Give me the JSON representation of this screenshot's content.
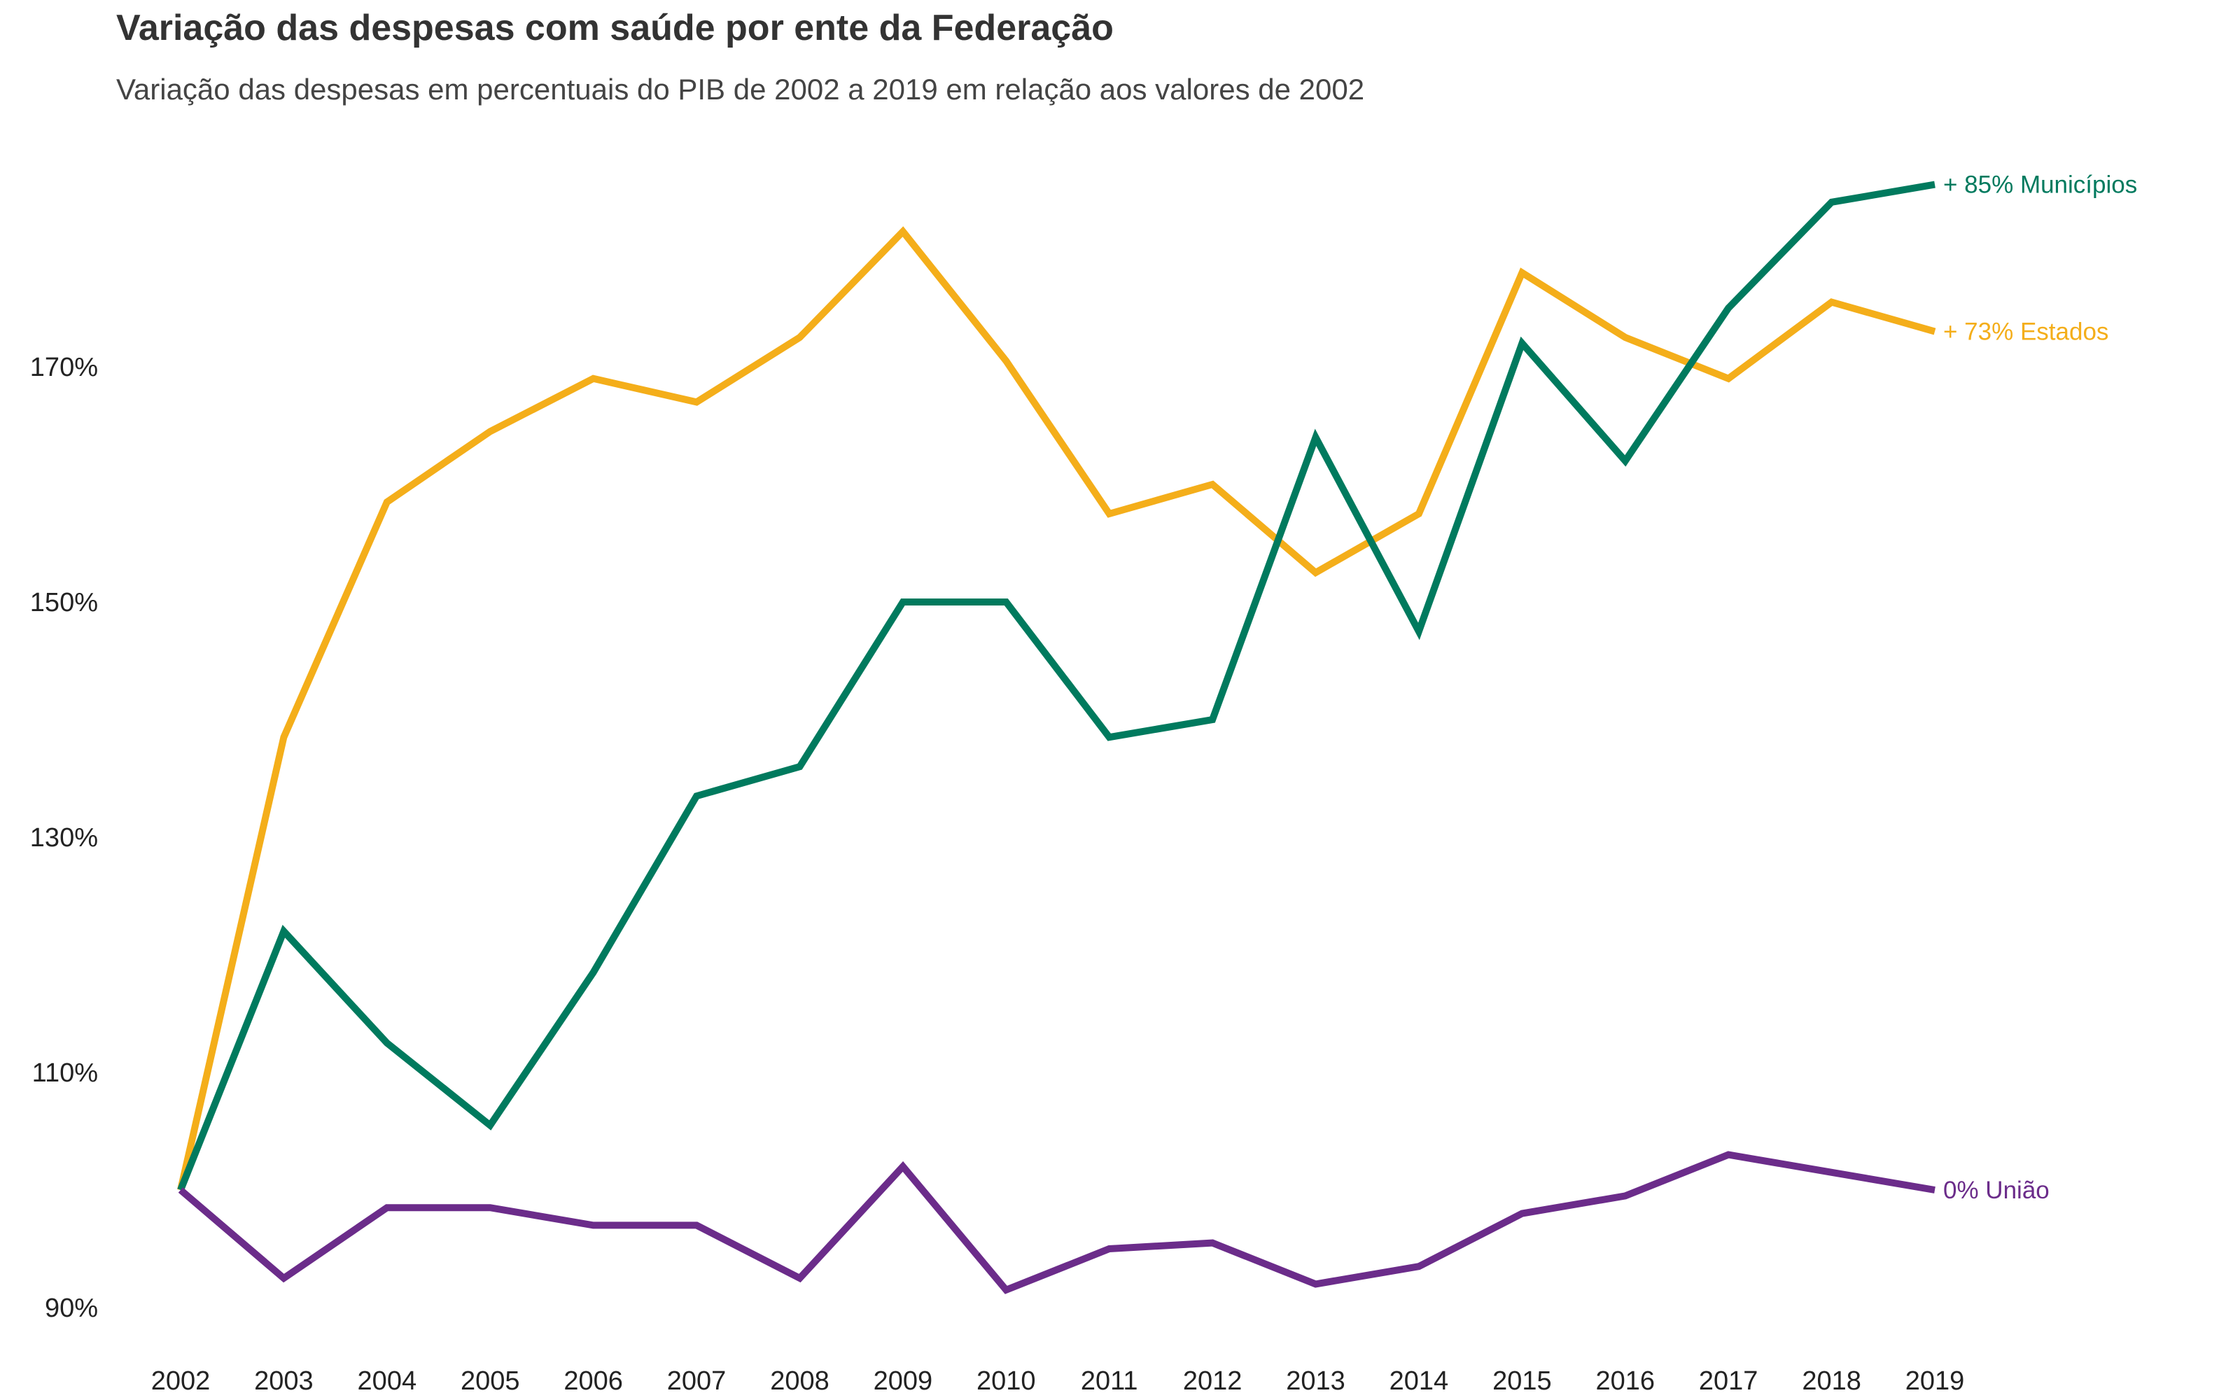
{
  "chart_data": {
    "type": "line",
    "title": "Variação das despesas com saúde por ente da Federação",
    "subtitle": "Variação das despesas em percentuais do PIB de 2002 a 2019 em relação aos valores de 2002",
    "x": [
      "2002",
      "2003",
      "2004",
      "2005",
      "2006",
      "2007",
      "2008",
      "2009",
      "2010",
      "2011",
      "2012",
      "2013",
      "2014",
      "2015",
      "2016",
      "2017",
      "2018",
      "2019"
    ],
    "yticks": [
      {
        "value": 90,
        "label": "90%"
      },
      {
        "value": 110,
        "label": "110%"
      },
      {
        "value": 130,
        "label": "130%"
      },
      {
        "value": 150,
        "label": "150%"
      },
      {
        "value": 170,
        "label": "170%"
      }
    ],
    "ylim": [
      89,
      185
    ],
    "grid": false,
    "series": [
      {
        "key": "municipios",
        "color": "#007A5E",
        "end_label": "+ 85% Municípios",
        "values": [
          100,
          122,
          112.5,
          105.5,
          118.5,
          133.5,
          136,
          150,
          150,
          138.5,
          140,
          164,
          147.5,
          172,
          162,
          175,
          184,
          185.5
        ]
      },
      {
        "key": "estados",
        "color": "#F4AE1A",
        "end_label": "+ 73% Estados",
        "values": [
          100,
          138.5,
          158.5,
          164.5,
          169,
          167,
          172.5,
          181.5,
          170.5,
          157.5,
          160,
          152.5,
          157.5,
          178,
          172.5,
          169,
          175.5,
          173
        ]
      },
      {
        "key": "uniao",
        "color": "#6B2C8A",
        "end_label": "0% União",
        "values": [
          100,
          92.5,
          98.5,
          98.5,
          97,
          97,
          92.5,
          102,
          91.5,
          95,
          95.5,
          92,
          93.5,
          98,
          99.5,
          103,
          101.5,
          100
        ]
      }
    ]
  }
}
